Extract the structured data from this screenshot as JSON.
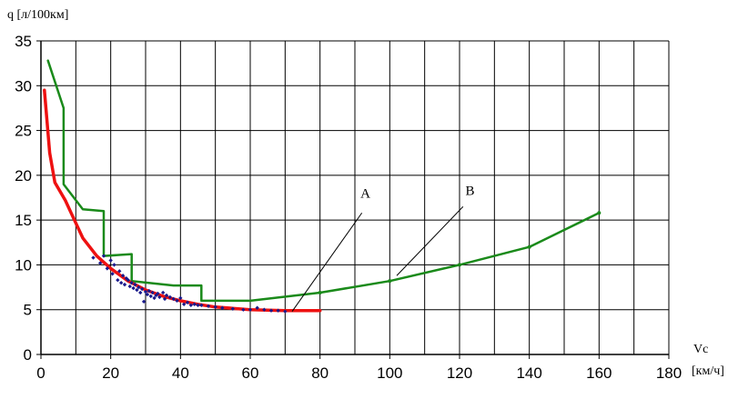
{
  "chart_data": {
    "type": "line",
    "ylabel": "q [л/100км]",
    "xlabel_line1": "Vc",
    "xlabel_line2": "[км/ч]",
    "xlim": [
      0,
      180
    ],
    "ylim": [
      0,
      35
    ],
    "x_ticks": [
      0,
      20,
      40,
      60,
      80,
      100,
      120,
      140,
      160,
      180
    ],
    "y_ticks": [
      0,
      5,
      10,
      15,
      20,
      25,
      30,
      35
    ],
    "grid": true,
    "series": [
      {
        "id": "green",
        "color": "#1a8a1a",
        "points": [
          [
            2,
            32.8
          ],
          [
            6.5,
            27.5
          ],
          [
            6.5,
            19
          ],
          [
            12,
            16.2
          ],
          [
            18,
            16
          ],
          [
            18,
            11
          ],
          [
            26,
            11.2
          ],
          [
            26,
            8.2
          ],
          [
            38,
            7.7
          ],
          [
            46,
            7.7
          ],
          [
            46,
            6
          ],
          [
            60,
            6
          ],
          [
            80,
            6.9
          ],
          [
            100,
            8.2
          ],
          [
            120,
            10
          ],
          [
            140,
            12
          ],
          [
            160,
            15.8
          ]
        ]
      },
      {
        "id": "red",
        "color": "#ee1111",
        "points": [
          [
            1,
            29.5
          ],
          [
            2.5,
            22.5
          ],
          [
            4,
            19.2
          ],
          [
            7,
            17.2
          ],
          [
            9,
            15.5
          ],
          [
            12,
            13
          ],
          [
            16,
            11
          ],
          [
            20,
            9.6
          ],
          [
            25,
            8.2
          ],
          [
            30,
            7.2
          ],
          [
            35,
            6.5
          ],
          [
            40,
            6
          ],
          [
            45,
            5.6
          ],
          [
            50,
            5.3
          ],
          [
            60,
            5
          ],
          [
            70,
            4.9
          ],
          [
            80,
            4.9
          ]
        ]
      },
      {
        "id": "measured",
        "color": "#1a1a8c",
        "style": "points",
        "points": [
          [
            15,
            10.8
          ],
          [
            17,
            10.2
          ],
          [
            18,
            11
          ],
          [
            19,
            9.6
          ],
          [
            20,
            10.5
          ],
          [
            20.5,
            9
          ],
          [
            21,
            10
          ],
          [
            22,
            8.3
          ],
          [
            22.5,
            9.3
          ],
          [
            23,
            8
          ],
          [
            23.5,
            8.8
          ],
          [
            24,
            7.8
          ],
          [
            24.5,
            8.5
          ],
          [
            25,
            8.3
          ],
          [
            25.5,
            7.6
          ],
          [
            26,
            8
          ],
          [
            26.5,
            7.4
          ],
          [
            27,
            7.8
          ],
          [
            27.5,
            7.2
          ],
          [
            28,
            7.5
          ],
          [
            28.5,
            6.9
          ],
          [
            29,
            7.3
          ],
          [
            29.5,
            5.9
          ],
          [
            30,
            7
          ],
          [
            30.5,
            6.7
          ],
          [
            31,
            7.1
          ],
          [
            31.5,
            6.5
          ],
          [
            32,
            6.9
          ],
          [
            32.5,
            6.3
          ],
          [
            33,
            6.6
          ],
          [
            33.5,
            6.8
          ],
          [
            34,
            6.4
          ],
          [
            35,
            6.9
          ],
          [
            35.5,
            6.2
          ],
          [
            36,
            6.6
          ],
          [
            37,
            6.4
          ],
          [
            38,
            6.2
          ],
          [
            39,
            6
          ],
          [
            40,
            6.3
          ],
          [
            41,
            5.6
          ],
          [
            42,
            5.8
          ],
          [
            43,
            5.5
          ],
          [
            44,
            5.6
          ],
          [
            45,
            5.5
          ],
          [
            46,
            5.5
          ],
          [
            48,
            5.4
          ],
          [
            50,
            5.3
          ],
          [
            52,
            5.2
          ],
          [
            55,
            5.1
          ],
          [
            58,
            5
          ],
          [
            60,
            5
          ],
          [
            62,
            5.2
          ],
          [
            64,
            5
          ],
          [
            66,
            4.9
          ],
          [
            68,
            4.9
          ],
          [
            70,
            4.8
          ]
        ]
      }
    ],
    "annotations": [
      {
        "label": "A",
        "text_at": [
          93,
          17.5
        ],
        "line_from": [
          92,
          15.8
        ],
        "line_to": [
          72,
          4.8
        ]
      },
      {
        "label": "B",
        "text_at": [
          123,
          17.8
        ],
        "line_from": [
          121,
          16.5
        ],
        "line_to": [
          102,
          8.8
        ]
      }
    ]
  }
}
